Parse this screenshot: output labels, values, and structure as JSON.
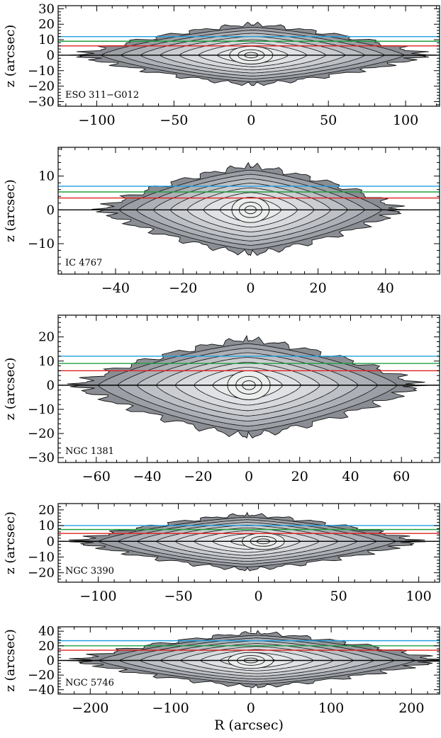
{
  "chart_data": [
    {
      "type": "contour",
      "galaxy": "ESO 311−G012",
      "ylabel": "z (arcsec)",
      "xlabel": "",
      "xlim": [
        -125,
        122
      ],
      "ylim": [
        -33,
        32
      ],
      "x_ticks": [
        -100,
        -50,
        0,
        50,
        100
      ],
      "y_ticks": [
        -30,
        -20,
        -10,
        0,
        10,
        20,
        30
      ],
      "x_tick_labels": [
        "−100",
        "−50",
        "0",
        "50",
        "100"
      ],
      "y_tick_labels": [
        "−30",
        "−20",
        "−10",
        "0",
        "10",
        "20",
        "30"
      ],
      "horizontal_lines": [
        {
          "color": "#000000",
          "z": 0
        },
        {
          "color": "#e02020",
          "z": 6
        },
        {
          "color": "#20a040",
          "z": 9
        },
        {
          "color": "#20a0e0",
          "z": 12
        }
      ],
      "outer_extent_R": [
        -110,
        112
      ],
      "outer_extent_z": [
        -19,
        20
      ],
      "center_ring_x": 0
    },
    {
      "type": "contour",
      "galaxy": "IC 4767",
      "ylabel": "z (arcsec)",
      "xlabel": "",
      "xlim": [
        -57,
        56
      ],
      "ylim": [
        -19,
        18.5
      ],
      "x_ticks": [
        -40,
        -20,
        0,
        20,
        40
      ],
      "y_ticks": [
        -10,
        0,
        10
      ],
      "x_tick_labels": [
        "−40",
        "−20",
        "0",
        "20",
        "40"
      ],
      "y_tick_labels": [
        "−10",
        "0",
        "10"
      ],
      "horizontal_lines": [
        {
          "color": "#000000",
          "z": 0
        },
        {
          "color": "#e02020",
          "z": 3.5
        },
        {
          "color": "#20a040",
          "z": 5.3
        },
        {
          "color": "#20a0e0",
          "z": 7
        }
      ],
      "outer_extent_R": [
        -44,
        44
      ],
      "outer_extent_z": [
        -13,
        13
      ],
      "center_ring_x": 0
    },
    {
      "type": "contour",
      "galaxy": "NGC 1381",
      "ylabel": "z (arcsec)",
      "xlabel": "",
      "xlim": [
        -75,
        75
      ],
      "ylim": [
        -32,
        29
      ],
      "x_ticks": [
        -60,
        -40,
        -20,
        0,
        20,
        40,
        60
      ],
      "y_ticks": [
        -30,
        -20,
        -10,
        0,
        10,
        20
      ],
      "x_tick_labels": [
        "−60",
        "−40",
        "−20",
        "0",
        "20",
        "40",
        "60"
      ],
      "y_tick_labels": [
        "−30",
        "−20",
        "−10",
        "0",
        "10",
        "20"
      ],
      "horizontal_lines": [
        {
          "color": "#000000",
          "z": 0
        },
        {
          "color": "#e02020",
          "z": 6
        },
        {
          "color": "#20a040",
          "z": 9
        },
        {
          "color": "#20a0e0",
          "z": 12
        }
      ],
      "outer_extent_R": [
        -67,
        66
      ],
      "outer_extent_z": [
        -21,
        19
      ],
      "center_ring_x": 0
    },
    {
      "type": "contour",
      "galaxy": "NGC 3390",
      "ylabel": "z (arcsec)",
      "xlabel": "",
      "xlim": [
        -125,
        113
      ],
      "ylim": [
        -26,
        24
      ],
      "x_ticks": [
        -100,
        -50,
        0,
        50,
        100
      ],
      "y_ticks": [
        -20,
        -10,
        0,
        10,
        20
      ],
      "x_tick_labels": [
        "−100",
        "−50",
        "0",
        "50",
        "100"
      ],
      "y_tick_labels": [
        "−20",
        "−10",
        "0",
        "10",
        "20"
      ],
      "horizontal_lines": [
        {
          "color": "#000000",
          "z": 0
        },
        {
          "color": "#e02020",
          "z": 5
        },
        {
          "color": "#20a040",
          "z": 7.5
        },
        {
          "color": "#20a0e0",
          "z": 10
        }
      ],
      "outer_extent_R": [
        -112,
        98
      ],
      "outer_extent_z": [
        -18,
        17
      ],
      "center_ring_x": 3
    },
    {
      "type": "contour",
      "galaxy": "NGC 5746",
      "ylabel": "z (arcsec)",
      "xlabel": "R (arcsec)",
      "xlim": [
        -240,
        235
      ],
      "ylim": [
        -46,
        46
      ],
      "x_ticks": [
        -200,
        -100,
        0,
        100,
        200
      ],
      "y_ticks": [
        -40,
        -20,
        0,
        20,
        40
      ],
      "x_tick_labels": [
        "−200",
        "−100",
        "0",
        "100",
        "200"
      ],
      "y_tick_labels": [
        "−40",
        "−20",
        "0",
        "20",
        "40"
      ],
      "horizontal_lines": [
        {
          "color": "#000000",
          "z": 0
        },
        {
          "color": "#e02020",
          "z": 14
        },
        {
          "color": "#20a040",
          "z": 20
        },
        {
          "color": "#20a0e0",
          "z": 27
        }
      ],
      "outer_extent_R": [
        -215,
        230
      ],
      "outer_extent_z": [
        -36,
        38
      ],
      "center_ring_x": 0
    }
  ]
}
